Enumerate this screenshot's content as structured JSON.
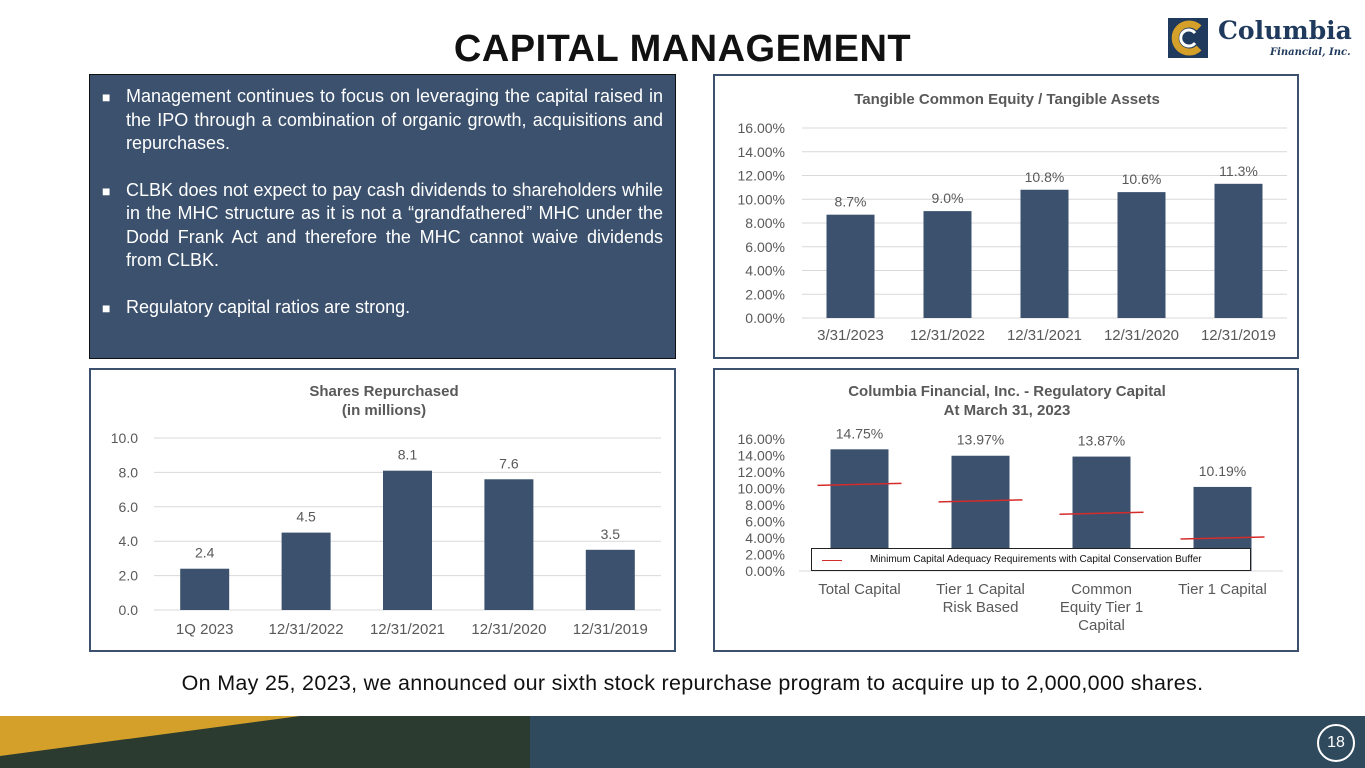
{
  "page": {
    "title": "CAPITAL MANAGEMENT",
    "page_number": "18",
    "footer_text": "On May 25, 2023, we announced our sixth stock repurchase program to acquire up to 2,000,000 shares.",
    "logo": {
      "name": "Columbia",
      "tagline": "Financial, Inc."
    }
  },
  "colors": {
    "bar": "#3b516d",
    "panel_border": "#3b516d",
    "min_line": "#d62b2b",
    "gold": "#d4a02a",
    "dark_band": "#2b3b2f",
    "teal_band": "#2f4a5c"
  },
  "bullets": [
    {
      "marker": "■",
      "text": "Management continues to focus on leveraging the capital raised in the IPO through a combination of organic growth, acquisitions and repurchases."
    },
    {
      "marker": "■",
      "text": "CLBK does not expect to pay cash dividends to shareholders while in the MHC structure as it is not a “grandfathered” MHC under the Dodd Frank Act and therefore the MHC cannot waive dividends from CLBK."
    },
    {
      "marker": "■",
      "text": "Regulatory capital ratios are strong."
    }
  ],
  "chart_data": [
    {
      "id": "tce",
      "type": "bar",
      "title": "Tangible Common Equity / Tangible Assets",
      "categories": [
        "3/31/2023",
        "12/31/2022",
        "12/31/2021",
        "12/31/2020",
        "12/31/2019"
      ],
      "values": [
        8.7,
        9.0,
        10.8,
        10.6,
        11.3
      ],
      "labels": [
        "8.7%",
        "9.0%",
        "10.8%",
        "10.6%",
        "11.3%"
      ],
      "ylim": [
        0,
        16
      ],
      "yticks": [
        "0.00%",
        "2.00%",
        "4.00%",
        "6.00%",
        "8.00%",
        "10.00%",
        "12.00%",
        "14.00%",
        "16.00%"
      ],
      "grid": true
    },
    {
      "id": "shares",
      "type": "bar",
      "title": "Shares Repurchased",
      "subtitle": "(in millions)",
      "categories": [
        "1Q 2023",
        "12/31/2022",
        "12/31/2021",
        "12/31/2020",
        "12/31/2019"
      ],
      "values": [
        2.4,
        4.5,
        8.1,
        7.6,
        3.5
      ],
      "labels": [
        "2.4",
        "4.5",
        "8.1",
        "7.6",
        "3.5"
      ],
      "ylim": [
        0,
        10
      ],
      "yticks": [
        "0.0",
        "2.0",
        "4.0",
        "6.0",
        "8.0",
        "10.0"
      ],
      "grid": true
    },
    {
      "id": "regcap",
      "type": "bar",
      "title": "Columbia Financial, Inc. - Regulatory Capital",
      "subtitle": "At March 31, 2023",
      "categories": [
        [
          "Total Capital"
        ],
        [
          "Tier 1 Capital",
          "Risk Based"
        ],
        [
          "Common",
          "Equity Tier 1",
          "Capital"
        ],
        [
          "Tier 1 Capital"
        ]
      ],
      "values": [
        14.75,
        13.97,
        13.87,
        10.19
      ],
      "labels": [
        "14.75%",
        "13.97%",
        "13.87%",
        "10.19%"
      ],
      "min_requirements": [
        10.5,
        8.5,
        7.0,
        4.0
      ],
      "legend": "Minimum Capital Adequacy Requirements with Capital Conservation Buffer",
      "legend_position": "bottom",
      "ylim": [
        0,
        16
      ],
      "yticks": [
        "0.00%",
        "2.00%",
        "4.00%",
        "6.00%",
        "8.00%",
        "10.00%",
        "12.00%",
        "14.00%",
        "16.00%"
      ],
      "grid": false
    }
  ]
}
